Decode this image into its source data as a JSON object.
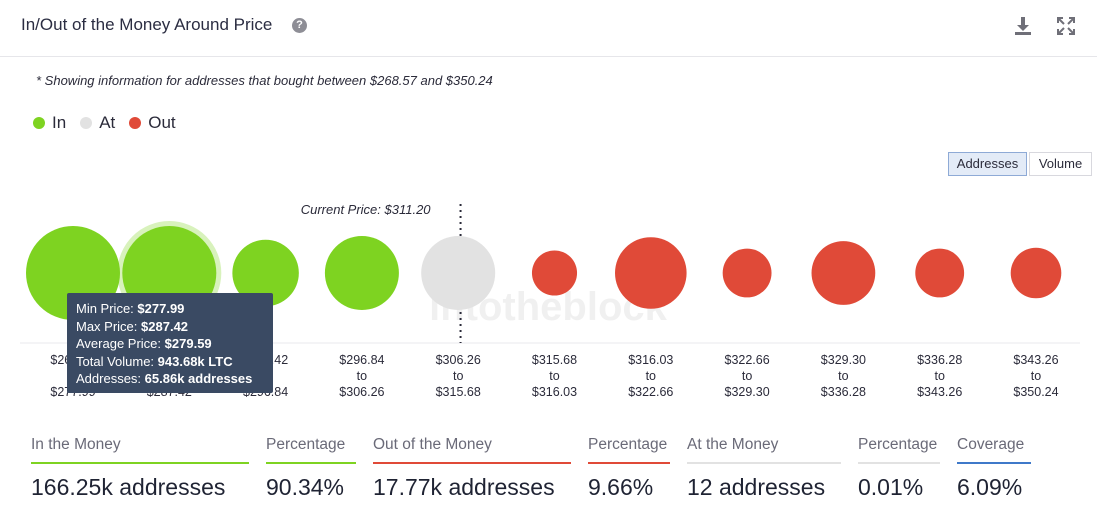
{
  "header": {
    "title": "In/Out of the Money Around Price",
    "help_icon": "question-circle-icon",
    "download_icon": "download-icon",
    "expand_icon": "expand-icon"
  },
  "note": "* Showing information for addresses that bought between $268.57 and $350.24",
  "legend": [
    {
      "label": "In",
      "color": "#7ed321"
    },
    {
      "label": "At",
      "color": "#e2e2e2"
    },
    {
      "label": "Out",
      "color": "#e04a38"
    }
  ],
  "toggles": {
    "addresses": "Addresses",
    "volume": "Volume",
    "active": "Addresses"
  },
  "watermark": "intotheblock",
  "chart_data": {
    "type": "scatter",
    "current_price_label": "Current Price: $311.20",
    "current_price": 311.2,
    "ranges": [
      {
        "from": "$268.57",
        "to": "$277.99",
        "status": "in",
        "relative_size": 1.0
      },
      {
        "from": "$277.99",
        "to": "$287.42",
        "status": "in",
        "relative_size": 1.0
      },
      {
        "from": "$287.42",
        "to": "$296.84",
        "status": "in",
        "relative_size": 0.5
      },
      {
        "from": "$296.84",
        "to": "$306.26",
        "status": "in",
        "relative_size": 0.62
      },
      {
        "from": "$306.26",
        "to": "$315.68",
        "status": "at",
        "relative_size": 0.62
      },
      {
        "from": "$315.68",
        "to": "$316.03",
        "status": "out",
        "relative_size": 0.23
      },
      {
        "from": "$316.03",
        "to": "$322.66",
        "status": "out",
        "relative_size": 0.58
      },
      {
        "from": "$322.66",
        "to": "$329.30",
        "status": "out",
        "relative_size": 0.27
      },
      {
        "from": "$329.30",
        "to": "$336.28",
        "status": "out",
        "relative_size": 0.46
      },
      {
        "from": "$336.28",
        "to": "$343.26",
        "status": "out",
        "relative_size": 0.27
      },
      {
        "from": "$343.26",
        "to": "$350.24",
        "status": "out",
        "relative_size": 0.29
      }
    ],
    "range_word": "to",
    "hovered_index": 1,
    "tooltip": {
      "min_price_label": "Min Price:",
      "min_price": "$277.99",
      "max_price_label": "Max Price:",
      "max_price": "$287.42",
      "avg_price_label": "Average Price:",
      "avg_price": "$279.59",
      "volume_label": "Total Volume:",
      "volume": "943.68k LTC",
      "addresses_label": "Addresses:",
      "addresses": "65.86k addresses"
    }
  },
  "stats": [
    {
      "label": "In the Money",
      "value": "166.25k addresses",
      "color": "#7ed321"
    },
    {
      "label": "Percentage",
      "value": "90.34%",
      "color": "#7ed321"
    },
    {
      "label": "Out of the Money",
      "value": "17.77k addresses",
      "color": "#e04a38"
    },
    {
      "label": "Percentage",
      "value": "9.66%",
      "color": "#e04a38"
    },
    {
      "label": "At the Money",
      "value": "12 addresses",
      "color": "#e2e2e2"
    },
    {
      "label": "Percentage",
      "value": "0.01%",
      "color": "#e2e2e2"
    },
    {
      "label": "Coverage",
      "value": "6.09%",
      "color": "#3f79c9"
    }
  ]
}
